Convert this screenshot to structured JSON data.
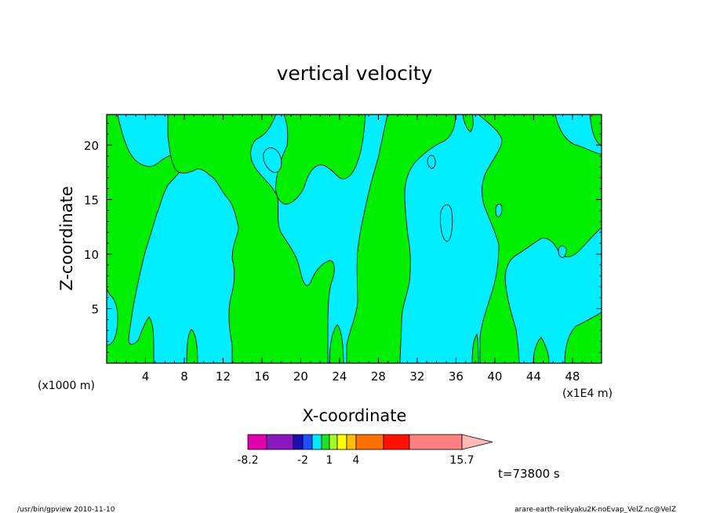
{
  "chart_data": {
    "type": "heatmap",
    "title": "vertical velocity",
    "xlabel": "X-coordinate",
    "ylabel": "Z-coordinate",
    "x_ticks": [
      "4",
      "8",
      "12",
      "16",
      "20",
      "24",
      "28",
      "32",
      "36",
      "40",
      "44",
      "48"
    ],
    "y_ticks": [
      "5",
      "10",
      "15",
      "20"
    ],
    "x_units_left": "(x1000 m)",
    "x_units_right": "(x1E4 m)",
    "xlim": [
      0,
      51
    ],
    "ylim": [
      0,
      22.8
    ],
    "colorbar": {
      "tick_labels": [
        "-8.2",
        "-2",
        "1",
        "4",
        "15.7"
      ],
      "levels": [
        -8.2,
        -6,
        -4,
        -2,
        -1,
        0,
        1,
        2,
        3,
        4,
        6,
        9,
        15.7
      ],
      "colors": [
        "#e000b0",
        "#8a18c0",
        "#1a10b0",
        "#2050ff",
        "#00e8ff",
        "#20e020",
        "#a0ff20",
        "#ffff00",
        "#ffc000",
        "#ff7000",
        "#ff1000",
        "#ff8080",
        "#ffb8b8"
      ]
    },
    "field_colors": {
      "negative": "#00eeff",
      "positive": "#00ee00"
    },
    "time_label": "t=73800 s"
  },
  "footer": {
    "left": "/usr/bin/gpview   2010-11-10",
    "right": "arare-earth-reikyaku2K-noEvap_VelZ.nc@VelZ"
  }
}
